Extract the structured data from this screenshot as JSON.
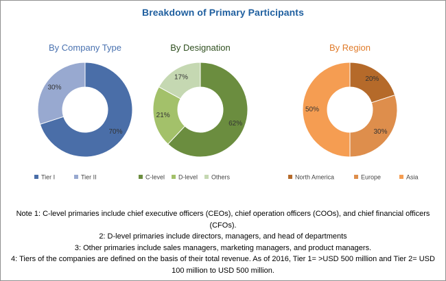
{
  "title": "Breakdown of Primary Participants",
  "chart_data": [
    {
      "type": "pie",
      "title": "By Company Type",
      "title_color": "#4a72b0",
      "labels": [
        "Tier I",
        "Tier II"
      ],
      "values": [
        70,
        30
      ],
      "value_labels": [
        "70%",
        "30%"
      ],
      "colors": [
        "#4a6ea8",
        "#98a9d0"
      ],
      "legend_placement": "bottom"
    },
    {
      "type": "pie",
      "title": "By Designation",
      "title_color": "#2f4f1f",
      "labels": [
        "C-level",
        "D-level",
        "Others"
      ],
      "values": [
        62,
        21,
        17
      ],
      "value_labels": [
        "62%",
        "21%",
        "17%"
      ],
      "colors": [
        "#6b8d3f",
        "#a3c16a",
        "#c5d8b2"
      ],
      "legend_placement": "bottom"
    },
    {
      "type": "pie",
      "title": "By Region",
      "title_color": "#e07b2a",
      "labels": [
        "North America",
        "Europe",
        "Asia"
      ],
      "values": [
        20,
        30,
        50
      ],
      "value_labels": [
        "20%",
        "30%",
        "50%"
      ],
      "colors": [
        "#b56a2a",
        "#de8e4c",
        "#f59d52"
      ],
      "legend_placement": "bottom"
    }
  ],
  "notes": [
    "Note 1: C-level primaries include chief executive officers (CEOs), chief operation officers (COOs), and chief financial officers (CFOs).",
    "2: D-level primaries include directors, managers, and head of departments",
    "3: Other primaries include sales managers, marketing managers, and product managers.",
    "4: Tiers of the companies are defined on the basis of their total revenue. As of 2016, Tier 1= >USD 500 million and Tier 2= USD 100 million to USD 500 million."
  ]
}
